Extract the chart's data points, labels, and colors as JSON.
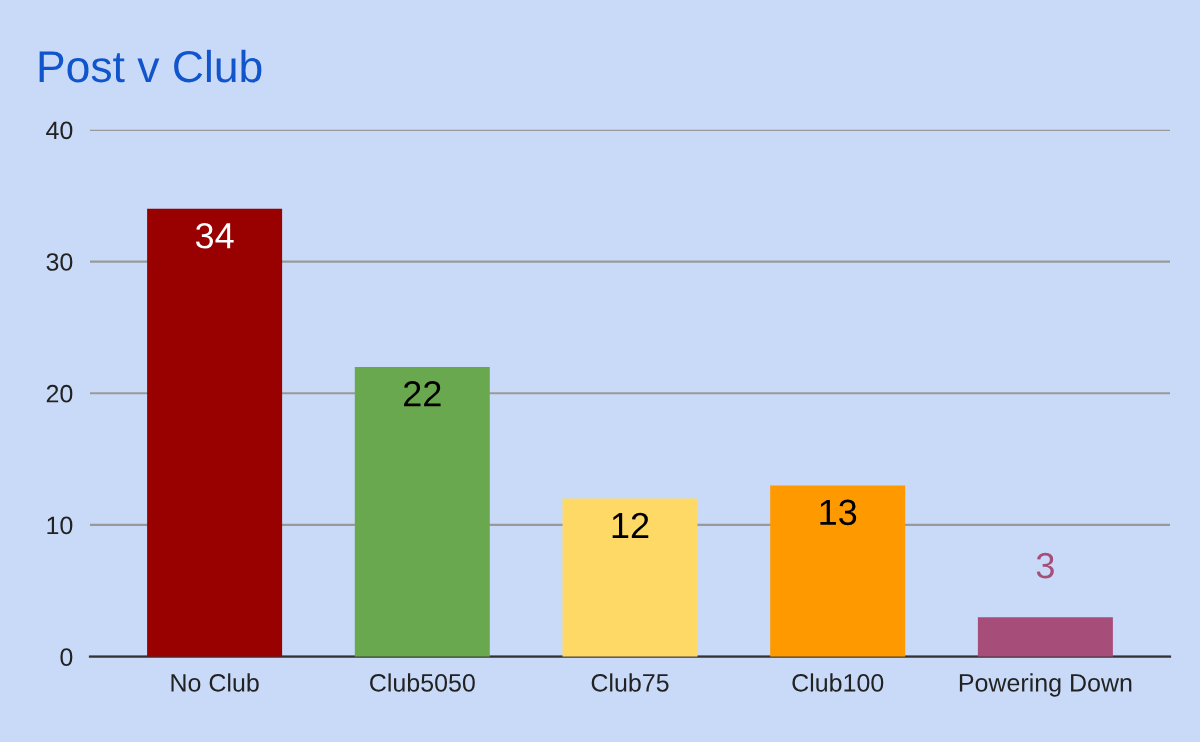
{
  "chart_data": {
    "type": "bar",
    "title": "Post v Club",
    "categories": [
      "No Club",
      "Club5050",
      "Club75",
      "Club100",
      "Powering Down"
    ],
    "values": [
      34,
      22,
      12,
      13,
      3
    ],
    "colors": [
      "#990000",
      "#6aa84f",
      "#ffd966",
      "#ff9900",
      "#a64d79"
    ],
    "ylim": [
      0,
      40
    ],
    "yticks": [
      0,
      10,
      20,
      30,
      40
    ],
    "grid": "y",
    "data_labels": true,
    "legend": false
  }
}
